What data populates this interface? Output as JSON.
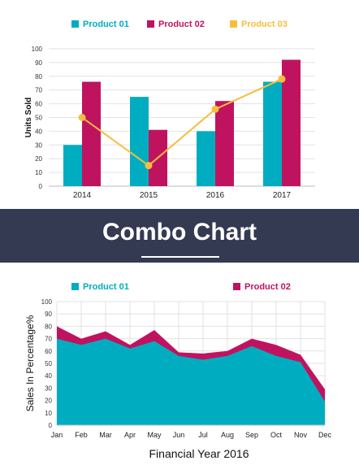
{
  "banner": {
    "title": "Combo Chart"
  },
  "colors": {
    "teal": "#00adc0",
    "magenta": "#c0135f",
    "yellow": "#f7be3c",
    "banner": "#333a52"
  },
  "chart_data": [
    {
      "type": "bar",
      "combo": "bar+line",
      "categories": [
        "2014",
        "2015",
        "2016",
        "2017"
      ],
      "series": [
        {
          "name": "Product 01",
          "kind": "bar",
          "color": "#00adc0",
          "values": [
            30,
            65,
            40,
            76
          ]
        },
        {
          "name": "Product 02",
          "kind": "bar",
          "color": "#c0135f",
          "values": [
            76,
            41,
            62,
            92
          ]
        },
        {
          "name": "Product 03",
          "kind": "line",
          "color": "#f7be3c",
          "values": [
            50,
            15,
            56,
            78
          ]
        }
      ],
      "ylabel": "Units Sold",
      "ylim": [
        0,
        100
      ],
      "yticks": [
        0,
        10,
        20,
        30,
        40,
        50,
        60,
        70,
        80,
        90,
        100
      ],
      "grid": true,
      "legend": "top"
    },
    {
      "type": "area",
      "stacked": true,
      "categories": [
        "Jan",
        "Feb",
        "Mar",
        "Apr",
        "May",
        "Jun",
        "Jul",
        "Aug",
        "Sep",
        "Oct",
        "Nov",
        "Dec"
      ],
      "series": [
        {
          "name": "Product 01",
          "color": "#00adc0",
          "values": [
            70,
            65,
            70,
            62,
            68,
            56,
            53,
            56,
            64,
            56,
            51,
            19
          ]
        },
        {
          "name": "Product 02",
          "color": "#c0135f",
          "values": [
            10,
            5,
            6,
            3,
            9,
            3,
            5,
            4,
            6,
            9,
            6,
            10
          ]
        }
      ],
      "xlabel": "Financial Year 2016",
      "ylabel": "Sales In Percentage%",
      "ylim": [
        0,
        100
      ],
      "yticks": [
        0,
        10,
        20,
        30,
        40,
        50,
        60,
        70,
        80,
        90,
        100
      ],
      "grid": true,
      "legend": "top"
    }
  ]
}
